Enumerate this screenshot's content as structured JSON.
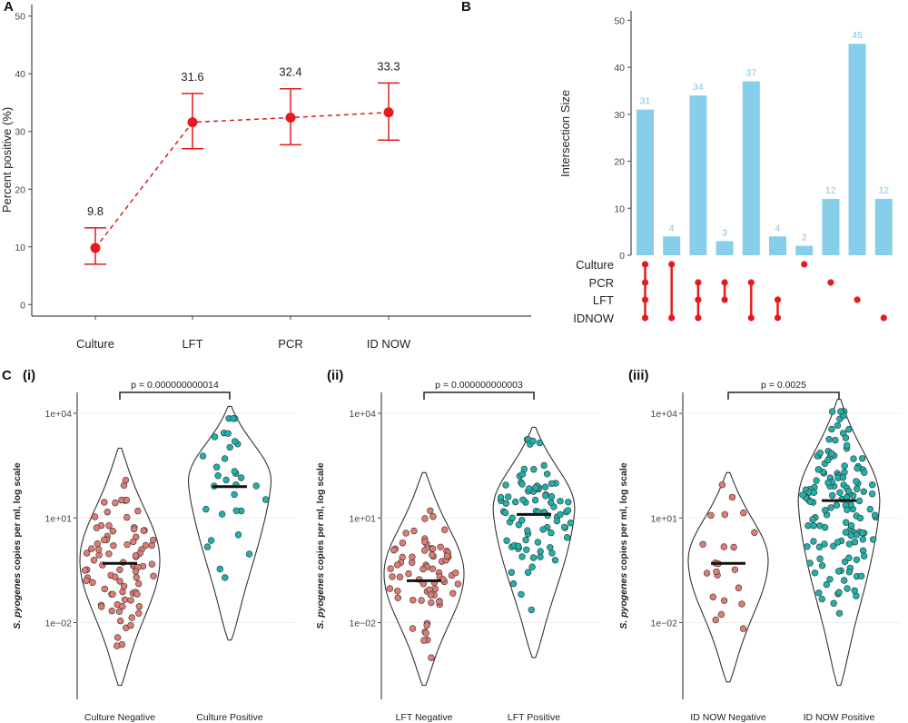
{
  "colors": {
    "red": "#e41a1c",
    "bar": "#87ceeb",
    "barLabel": "#7ec8e3",
    "neg": "#e07b74",
    "pos": "#20b2aa",
    "dark": "#222222"
  },
  "panelA": {
    "label": "A",
    "ylabel": "Percent positive (%)",
    "yticks": [
      0,
      10,
      20,
      30,
      40,
      50
    ],
    "chart_data": {
      "type": "line",
      "categories": [
        "Culture",
        "LFT",
        "PCR",
        "ID NOW"
      ],
      "values": [
        9.8,
        31.6,
        32.4,
        33.3
      ],
      "value_labels": [
        "9.8",
        "31.6",
        "32.4",
        "33.3"
      ],
      "ci_lower": [
        7.0,
        27.0,
        27.7,
        28.5
      ],
      "ci_upper": [
        13.3,
        36.6,
        37.4,
        38.4
      ],
      "ylim": [
        -2,
        52
      ],
      "ylabel": "Percent positive (%)"
    }
  },
  "panelB": {
    "label": "B",
    "ylabel": "Intersection Size",
    "yticks": [
      0,
      10,
      20,
      30,
      40,
      50
    ],
    "sets": [
      "Culture",
      "PCR",
      "LFT",
      "IDNOW"
    ],
    "chart_data": {
      "type": "bar",
      "values": [
        31,
        4,
        34,
        3,
        37,
        4,
        2,
        12,
        45,
        12
      ],
      "value_labels": [
        "31",
        "4",
        "34",
        "3",
        "37",
        "4",
        "2",
        "12",
        "45",
        "12"
      ],
      "membership": [
        [
          "Culture",
          "PCR",
          "LFT",
          "IDNOW"
        ],
        [
          "Culture",
          "IDNOW"
        ],
        [
          "PCR",
          "LFT",
          "IDNOW"
        ],
        [
          "PCR",
          "LFT"
        ],
        [
          "PCR",
          "IDNOW"
        ],
        [
          "LFT",
          "IDNOW"
        ],
        [
          "Culture"
        ],
        [
          "PCR"
        ],
        [
          "LFT"
        ],
        [
          "IDNOW"
        ]
      ],
      "ylim": [
        0,
        52
      ],
      "ylabel": "Intersection Size"
    }
  },
  "panelC": {
    "label": "C",
    "ylabel_italic": "S. pyogenes",
    "ylabel_rest": " copies per ml, log scale",
    "yticks": [
      {
        "exp": -2,
        "label": "1e−02"
      },
      {
        "exp": 1,
        "label": "1e+01"
      },
      {
        "exp": 4,
        "label": "1e+04"
      }
    ],
    "ylim_log10": [
      -4.2,
      4.6
    ],
    "subpanels": [
      {
        "sublabel": "(i)",
        "categories": [
          "Culture Negative",
          "Culture Positive"
        ],
        "pvalue": "p = 0.000000000014",
        "medians_log10": [
          -0.3,
          1.9
        ],
        "violin_range_log10": [
          [
            -3.8,
            3.0
          ],
          [
            -2.5,
            4.2
          ]
        ],
        "violin_mode_log10": [
          -0.2,
          2.0
        ],
        "n_points": [
          85,
          32
        ]
      },
      {
        "sublabel": "(ii)",
        "categories": [
          "LFT Negative",
          "LFT Positive"
        ],
        "pvalue": "p = 0.000000000003",
        "medians_log10": [
          -0.8,
          1.1
        ],
        "violin_range_log10": [
          [
            -3.8,
            2.3
          ],
          [
            -3.0,
            3.6
          ]
        ],
        "violin_mode_log10": [
          -0.6,
          1.2
        ],
        "n_points": [
          70,
          85
        ]
      },
      {
        "sublabel": "(iii)",
        "categories": [
          "ID NOW Negative",
          "ID NOW Positive"
        ],
        "pvalue": "p = 0.0025",
        "medians_log10": [
          -0.3,
          1.5
        ],
        "violin_range_log10": [
          [
            -3.7,
            2.3
          ],
          [
            -3.8,
            4.4
          ]
        ],
        "violin_mode_log10": [
          -0.2,
          1.4
        ],
        "n_points": [
          22,
          140
        ]
      }
    ]
  }
}
